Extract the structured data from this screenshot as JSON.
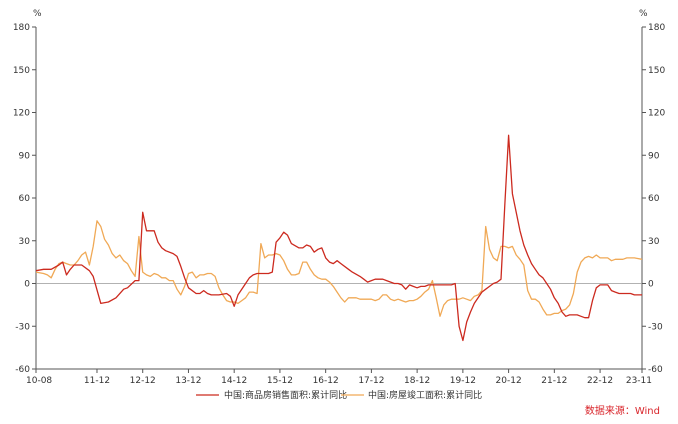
{
  "chart_data": {
    "type": "line",
    "title": "",
    "xlabel": "",
    "ylabel": "",
    "y_unit_left": "%",
    "y_unit_right": "%",
    "ylim": [
      -60,
      180
    ],
    "yticks": [
      -60,
      -30,
      0,
      30,
      60,
      90,
      120,
      150,
      180
    ],
    "ytick_labels": [
      "-60",
      "-30",
      "0",
      "30",
      "60",
      "90",
      "120",
      "150",
      "180"
    ],
    "xtick_labels": [
      "10-08",
      "11-12",
      "12-12",
      "13-12",
      "14-12",
      "15-12",
      "16-12",
      "17-12",
      "18-12",
      "19-12",
      "20-12",
      "21-12",
      "22-12",
      "23-11"
    ],
    "grid": false,
    "legend_position": "bottom",
    "colors": {
      "series1": "#cc2a1f",
      "series2": "#f0a956"
    },
    "series": [
      {
        "name": "中国:商品房销售面积:累计同比",
        "points": [
          [
            "2010-08",
            9
          ],
          [
            "2010-10",
            10
          ],
          [
            "2010-12",
            10
          ],
          [
            "2011-02",
            13
          ],
          [
            "2011-03",
            15
          ],
          [
            "2011-04",
            6
          ],
          [
            "2011-05",
            10
          ],
          [
            "2011-06",
            13
          ],
          [
            "2011-08",
            13
          ],
          [
            "2011-10",
            9
          ],
          [
            "2011-11",
            5
          ],
          [
            "2012-01",
            -14
          ],
          [
            "2012-03",
            -13
          ],
          [
            "2012-05",
            -10
          ],
          [
            "2012-07",
            -4
          ],
          [
            "2012-08",
            -3
          ],
          [
            "2012-10",
            2
          ],
          [
            "2012-11",
            2
          ],
          [
            "2012-12",
            50
          ],
          [
            "2013-01",
            37
          ],
          [
            "2013-03",
            37
          ],
          [
            "2013-04",
            29
          ],
          [
            "2013-05",
            25
          ],
          [
            "2013-06",
            23
          ],
          [
            "2013-08",
            21
          ],
          [
            "2013-09",
            19
          ],
          [
            "2013-10",
            12
          ],
          [
            "2013-11",
            4
          ],
          [
            "2013-12",
            -3
          ],
          [
            "2014-02",
            -7
          ],
          [
            "2014-03",
            -7
          ],
          [
            "2014-04",
            -5
          ],
          [
            "2014-05",
            -7
          ],
          [
            "2014-06",
            -8
          ],
          [
            "2014-08",
            -8
          ],
          [
            "2014-10",
            -7
          ],
          [
            "2014-11",
            -9
          ],
          [
            "2014-12",
            -16
          ],
          [
            "2015-01",
            -8
          ],
          [
            "2015-03",
            0
          ],
          [
            "2015-04",
            4
          ],
          [
            "2015-05",
            6
          ],
          [
            "2015-06",
            7
          ],
          [
            "2015-08",
            7
          ],
          [
            "2015-09",
            7
          ],
          [
            "2015-10",
            8
          ],
          [
            "2015-11",
            29
          ],
          [
            "2015-12",
            32
          ],
          [
            "2016-01",
            36
          ],
          [
            "2016-02",
            34
          ],
          [
            "2016-03",
            28
          ],
          [
            "2016-05",
            25
          ],
          [
            "2016-06",
            25
          ],
          [
            "2016-07",
            27
          ],
          [
            "2016-08",
            26
          ],
          [
            "2016-09",
            22
          ],
          [
            "2016-10",
            24
          ],
          [
            "2016-11",
            25
          ],
          [
            "2016-12",
            18
          ],
          [
            "2017-01",
            15
          ],
          [
            "2017-02",
            14
          ],
          [
            "2017-03",
            16
          ],
          [
            "2017-04",
            14
          ],
          [
            "2017-06",
            10
          ],
          [
            "2017-07",
            8
          ],
          [
            "2017-09",
            5
          ],
          [
            "2017-10",
            3
          ],
          [
            "2017-11",
            1
          ],
          [
            "2017-12",
            2
          ],
          [
            "2018-01",
            3
          ],
          [
            "2018-03",
            3
          ],
          [
            "2018-04",
            2
          ],
          [
            "2018-06",
            0
          ],
          [
            "2018-07",
            0
          ],
          [
            "2018-08",
            -1
          ],
          [
            "2018-09",
            -4
          ],
          [
            "2018-10",
            -1
          ],
          [
            "2018-11",
            -2
          ],
          [
            "2018-12",
            -3
          ],
          [
            "2019-01",
            -2
          ],
          [
            "2019-02",
            -2
          ],
          [
            "2019-03",
            -1
          ],
          [
            "2019-04",
            -1
          ],
          [
            "2019-05",
            -1
          ],
          [
            "2019-06",
            -1
          ],
          [
            "2019-07",
            -1
          ],
          [
            "2019-08",
            -1
          ],
          [
            "2019-09",
            -1
          ],
          [
            "2019-10",
            0
          ],
          [
            "2019-11",
            -30
          ],
          [
            "2019-12",
            -40
          ],
          [
            "2020-01",
            -27
          ],
          [
            "2020-02",
            -20
          ],
          [
            "2020-03",
            -14
          ],
          [
            "2020-04",
            -10
          ],
          [
            "2020-05",
            -6
          ],
          [
            "2020-06",
            -4
          ],
          [
            "2020-07",
            -2
          ],
          [
            "2020-08",
            0
          ],
          [
            "2020-09",
            1
          ],
          [
            "2020-10",
            3
          ],
          [
            "2020-11",
            55
          ],
          [
            "2020-12",
            104
          ],
          [
            "2021-01",
            63
          ],
          [
            "2021-02",
            50
          ],
          [
            "2021-03",
            37
          ],
          [
            "2021-04",
            27
          ],
          [
            "2021-05",
            20
          ],
          [
            "2021-06",
            14
          ],
          [
            "2021-07",
            10
          ],
          [
            "2021-08",
            6
          ],
          [
            "2021-09",
            4
          ],
          [
            "2021-10",
            0
          ],
          [
            "2021-11",
            -4
          ],
          [
            "2021-12",
            -10
          ],
          [
            "2022-01",
            -14
          ],
          [
            "2022-02",
            -20
          ],
          [
            "2022-03",
            -23
          ],
          [
            "2022-04",
            -22
          ],
          [
            "2022-05",
            -22
          ],
          [
            "2022-06",
            -22
          ],
          [
            "2022-07",
            -23
          ],
          [
            "2022-08",
            -24
          ],
          [
            "2022-09",
            -24
          ],
          [
            "2022-10",
            -12
          ],
          [
            "2022-11",
            -3
          ],
          [
            "2022-12",
            -1
          ],
          [
            "2023-01",
            -1
          ],
          [
            "2023-02",
            -1
          ],
          [
            "2023-03",
            -5
          ],
          [
            "2023-04",
            -6
          ],
          [
            "2023-05",
            -7
          ],
          [
            "2023-06",
            -7
          ],
          [
            "2023-07",
            -7
          ],
          [
            "2023-08",
            -7
          ],
          [
            "2023-09",
            -8
          ],
          [
            "2023-11",
            -8
          ]
        ]
      },
      {
        "name": "中国:房屋竣工面积:累计同比",
        "points": [
          [
            "2010-08",
            8
          ],
          [
            "2010-10",
            7
          ],
          [
            "2010-11",
            6
          ],
          [
            "2010-12",
            4
          ],
          [
            "2011-01",
            10
          ],
          [
            "2011-02",
            14
          ],
          [
            "2011-03",
            15
          ],
          [
            "2011-04",
            14
          ],
          [
            "2011-05",
            13
          ],
          [
            "2011-06",
            13
          ],
          [
            "2011-07",
            16
          ],
          [
            "2011-08",
            20
          ],
          [
            "2011-09",
            22
          ],
          [
            "2011-10",
            13
          ],
          [
            "2011-11",
            26
          ],
          [
            "2011-12",
            44
          ],
          [
            "2012-01",
            40
          ],
          [
            "2012-02",
            31
          ],
          [
            "2012-03",
            27
          ],
          [
            "2012-04",
            21
          ],
          [
            "2012-05",
            18
          ],
          [
            "2012-06",
            20
          ],
          [
            "2012-07",
            16
          ],
          [
            "2012-08",
            14
          ],
          [
            "2012-09",
            9
          ],
          [
            "2012-10",
            5
          ],
          [
            "2012-11",
            33
          ],
          [
            "2012-12",
            8
          ],
          [
            "2013-01",
            6
          ],
          [
            "2013-02",
            5
          ],
          [
            "2013-03",
            7
          ],
          [
            "2013-04",
            6
          ],
          [
            "2013-05",
            4
          ],
          [
            "2013-06",
            4
          ],
          [
            "2013-07",
            2
          ],
          [
            "2013-08",
            2
          ],
          [
            "2013-09",
            -4
          ],
          [
            "2013-10",
            -8
          ],
          [
            "2013-11",
            -2
          ],
          [
            "2013-12",
            7
          ],
          [
            "2014-01",
            8
          ],
          [
            "2014-02",
            4
          ],
          [
            "2014-03",
            6
          ],
          [
            "2014-04",
            6
          ],
          [
            "2014-05",
            7
          ],
          [
            "2014-06",
            7
          ],
          [
            "2014-07",
            5
          ],
          [
            "2014-08",
            -3
          ],
          [
            "2014-09",
            -8
          ],
          [
            "2014-10",
            -12
          ],
          [
            "2014-11",
            -13
          ],
          [
            "2014-12",
            -13
          ],
          [
            "2015-01",
            -14
          ],
          [
            "2015-02",
            -12
          ],
          [
            "2015-03",
            -10
          ],
          [
            "2015-04",
            -6
          ],
          [
            "2015-05",
            -6
          ],
          [
            "2015-06",
            -7
          ],
          [
            "2015-07",
            28
          ],
          [
            "2015-08",
            18
          ],
          [
            "2015-09",
            20
          ],
          [
            "2015-10",
            20
          ],
          [
            "2015-11",
            21
          ],
          [
            "2015-12",
            20
          ],
          [
            "2016-01",
            16
          ],
          [
            "2016-02",
            10
          ],
          [
            "2016-03",
            6
          ],
          [
            "2016-04",
            6
          ],
          [
            "2016-05",
            7
          ],
          [
            "2016-06",
            15
          ],
          [
            "2016-07",
            15
          ],
          [
            "2016-08",
            10
          ],
          [
            "2016-09",
            6
          ],
          [
            "2016-10",
            4
          ],
          [
            "2016-11",
            3
          ],
          [
            "2016-12",
            3
          ],
          [
            "2017-01",
            1
          ],
          [
            "2017-02",
            -2
          ],
          [
            "2017-03",
            -6
          ],
          [
            "2017-04",
            -10
          ],
          [
            "2017-05",
            -13
          ],
          [
            "2017-06",
            -10
          ],
          [
            "2017-07",
            -10
          ],
          [
            "2017-08",
            -10
          ],
          [
            "2017-09",
            -11
          ],
          [
            "2017-10",
            -11
          ],
          [
            "2017-11",
            -11
          ],
          [
            "2017-12",
            -11
          ],
          [
            "2018-01",
            -12
          ],
          [
            "2018-02",
            -11
          ],
          [
            "2018-03",
            -8
          ],
          [
            "2018-04",
            -8
          ],
          [
            "2018-05",
            -11
          ],
          [
            "2018-06",
            -12
          ],
          [
            "2018-07",
            -11
          ],
          [
            "2018-08",
            -12
          ],
          [
            "2018-09",
            -13
          ],
          [
            "2018-10",
            -12
          ],
          [
            "2018-11",
            -12
          ],
          [
            "2018-12",
            -11
          ],
          [
            "2019-01",
            -9
          ],
          [
            "2019-02",
            -6
          ],
          [
            "2019-03",
            -4
          ],
          [
            "2019-04",
            2
          ],
          [
            "2019-05",
            -10
          ],
          [
            "2019-06",
            -23
          ],
          [
            "2019-07",
            -15
          ],
          [
            "2019-08",
            -12
          ],
          [
            "2019-09",
            -11
          ],
          [
            "2019-10",
            -11
          ],
          [
            "2019-11",
            -11
          ],
          [
            "2019-12",
            -10
          ],
          [
            "2020-01",
            -11
          ],
          [
            "2020-02",
            -12
          ],
          [
            "2020-03",
            -9
          ],
          [
            "2020-04",
            -8
          ],
          [
            "2020-05",
            -5
          ],
          [
            "2020-06",
            40
          ],
          [
            "2020-07",
            24
          ],
          [
            "2020-08",
            18
          ],
          [
            "2020-09",
            16
          ],
          [
            "2020-10",
            26
          ],
          [
            "2020-11",
            26
          ],
          [
            "2020-12",
            25
          ],
          [
            "2021-01",
            26
          ],
          [
            "2021-02",
            20
          ],
          [
            "2021-03",
            17
          ],
          [
            "2021-04",
            13
          ],
          [
            "2021-05",
            -5
          ],
          [
            "2021-06",
            -11
          ],
          [
            "2021-07",
            -11
          ],
          [
            "2021-08",
            -13
          ],
          [
            "2021-09",
            -18
          ],
          [
            "2021-10",
            -22
          ],
          [
            "2021-11",
            -22
          ],
          [
            "2021-12",
            -21
          ],
          [
            "2022-01",
            -21
          ],
          [
            "2022-02",
            -19
          ],
          [
            "2022-03",
            -18
          ],
          [
            "2022-04",
            -15
          ],
          [
            "2022-05",
            -7
          ],
          [
            "2022-06",
            8
          ],
          [
            "2022-07",
            15
          ],
          [
            "2022-08",
            18
          ],
          [
            "2022-09",
            19
          ],
          [
            "2022-10",
            18
          ],
          [
            "2022-11",
            20
          ],
          [
            "2022-12",
            18
          ],
          [
            "2023-01",
            18
          ],
          [
            "2023-02",
            18
          ],
          [
            "2023-03",
            16
          ],
          [
            "2023-04",
            17
          ],
          [
            "2023-05",
            17
          ],
          [
            "2023-06",
            17
          ],
          [
            "2023-07",
            18
          ],
          [
            "2023-08",
            18
          ],
          [
            "2023-09",
            18
          ],
          [
            "2023-11",
            17
          ]
        ]
      }
    ]
  },
  "source_text": "数据来源：Wind"
}
